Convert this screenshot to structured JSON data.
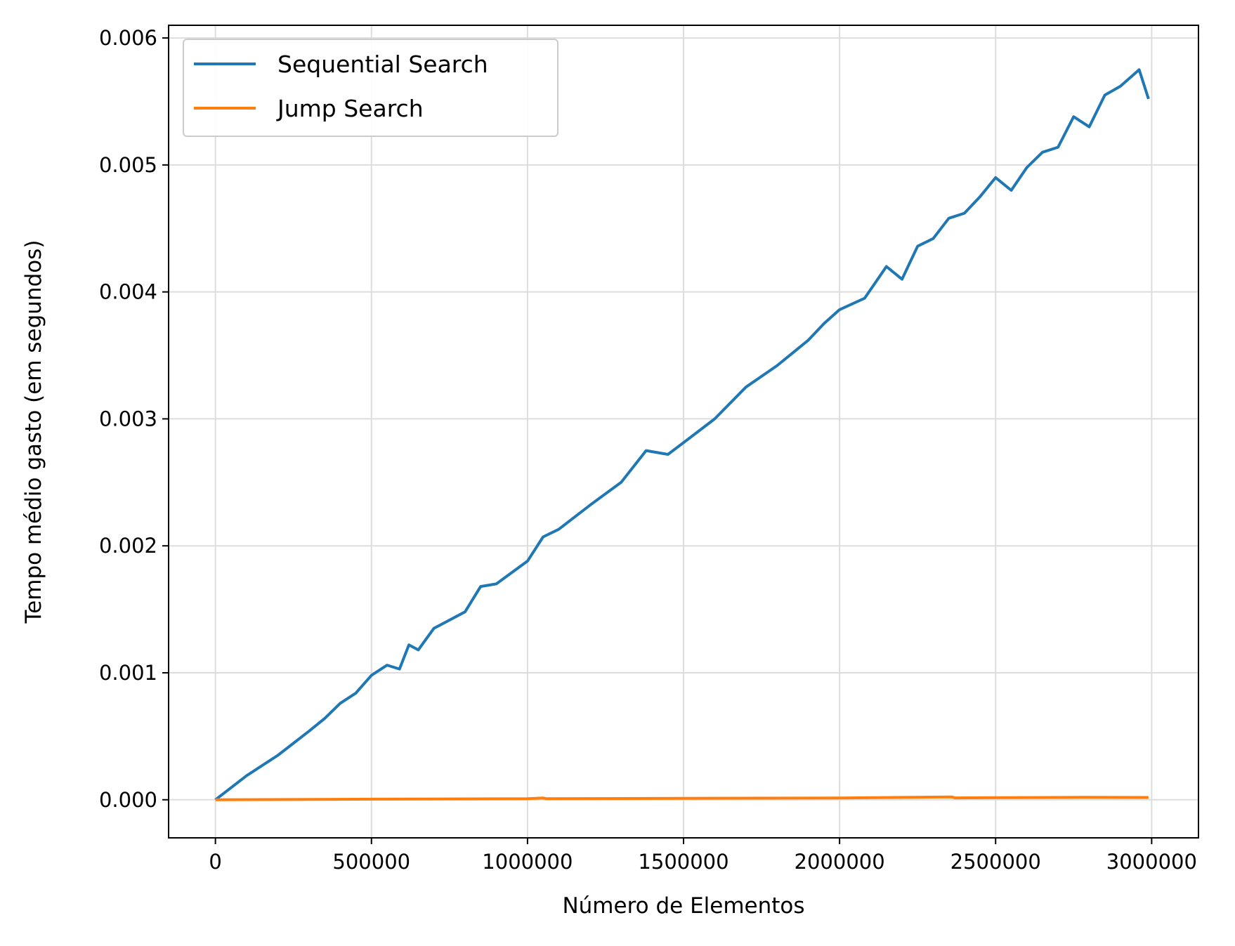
{
  "chart_data": {
    "type": "line",
    "title": "",
    "xlabel": "Número de Elementos",
    "ylabel": "Tempo médio gasto (em segundos)",
    "xlim": [
      -150000,
      3150000
    ],
    "ylim": [
      -0.0003,
      0.0061
    ],
    "xticks": [
      0,
      500000,
      1000000,
      1500000,
      2000000,
      2500000,
      3000000
    ],
    "xtick_labels": [
      "0",
      "500000",
      "1000000",
      "1500000",
      "2000000",
      "2500000",
      "3000000"
    ],
    "yticks": [
      0.0,
      0.001,
      0.002,
      0.003,
      0.004,
      0.005,
      0.006
    ],
    "ytick_labels": [
      "0.000",
      "0.001",
      "0.002",
      "0.003",
      "0.004",
      "0.005",
      "0.006"
    ],
    "grid": true,
    "legend_position": "upper-left",
    "series": [
      {
        "name": "Sequential Search",
        "color": "#1f77b4",
        "points": [
          [
            0,
            0.0
          ],
          [
            100000,
            0.00019
          ],
          [
            200000,
            0.00035
          ],
          [
            300000,
            0.00054
          ],
          [
            350000,
            0.00064
          ],
          [
            400000,
            0.00076
          ],
          [
            450000,
            0.00084
          ],
          [
            500000,
            0.00098
          ],
          [
            550000,
            0.00106
          ],
          [
            590000,
            0.00103
          ],
          [
            620000,
            0.00122
          ],
          [
            650000,
            0.00118
          ],
          [
            700000,
            0.00135
          ],
          [
            800000,
            0.00148
          ],
          [
            850000,
            0.00168
          ],
          [
            900000,
            0.0017
          ],
          [
            1000000,
            0.00188
          ],
          [
            1050000,
            0.00207
          ],
          [
            1100000,
            0.00213
          ],
          [
            1200000,
            0.00232
          ],
          [
            1300000,
            0.0025
          ],
          [
            1380000,
            0.00275
          ],
          [
            1450000,
            0.00272
          ],
          [
            1520000,
            0.00285
          ],
          [
            1600000,
            0.003
          ],
          [
            1700000,
            0.00325
          ],
          [
            1800000,
            0.00342
          ],
          [
            1900000,
            0.00362
          ],
          [
            1950000,
            0.00375
          ],
          [
            2000000,
            0.00386
          ],
          [
            2080000,
            0.00395
          ],
          [
            2150000,
            0.0042
          ],
          [
            2200000,
            0.0041
          ],
          [
            2250000,
            0.00436
          ],
          [
            2300000,
            0.00442
          ],
          [
            2350000,
            0.00458
          ],
          [
            2400000,
            0.00462
          ],
          [
            2450000,
            0.00475
          ],
          [
            2500000,
            0.0049
          ],
          [
            2550000,
            0.0048
          ],
          [
            2600000,
            0.00498
          ],
          [
            2650000,
            0.0051
          ],
          [
            2700000,
            0.00514
          ],
          [
            2750000,
            0.00538
          ],
          [
            2800000,
            0.0053
          ],
          [
            2850000,
            0.00555
          ],
          [
            2900000,
            0.00562
          ],
          [
            2960000,
            0.00575
          ],
          [
            2990000,
            0.00552
          ]
        ]
      },
      {
        "name": "Jump Search",
        "color": "#ff7f0e",
        "points": [
          [
            0,
            0.0
          ],
          [
            500000,
            5e-06
          ],
          [
            1000000,
            8e-06
          ],
          [
            1050000,
            1.4e-05
          ],
          [
            1060000,
            8e-06
          ],
          [
            1500000,
            1.1e-05
          ],
          [
            2000000,
            1.4e-05
          ],
          [
            2360000,
            2.2e-05
          ],
          [
            2370000,
            1.5e-05
          ],
          [
            2780000,
            1.9e-05
          ],
          [
            2990000,
            1.8e-05
          ]
        ]
      }
    ]
  }
}
